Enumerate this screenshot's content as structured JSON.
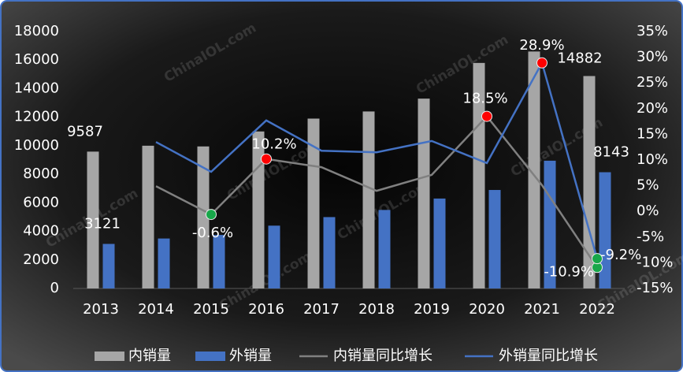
{
  "chart_data": {
    "type": "bar-line",
    "watermark": "ChinaIOL.com",
    "categories": [
      "2013",
      "2014",
      "2015",
      "2016",
      "2017",
      "2018",
      "2019",
      "2020",
      "2021",
      "2022"
    ],
    "series": [
      {
        "name": "内销量",
        "type": "bar",
        "color": "#a6a6a6",
        "values": [
          9587,
          10000,
          9950,
          11000,
          11900,
          12400,
          13300,
          15800,
          16600,
          14882
        ],
        "value_labels": [
          "9587",
          null,
          null,
          null,
          null,
          null,
          null,
          null,
          null,
          "14882"
        ]
      },
      {
        "name": "外销量",
        "type": "bar",
        "color": "#4472c4",
        "values": [
          3121,
          3500,
          3750,
          4400,
          5000,
          5500,
          6300,
          6900,
          8950,
          8143
        ],
        "value_labels": [
          "3121",
          null,
          null,
          null,
          null,
          null,
          null,
          null,
          null,
          "8143"
        ]
      },
      {
        "name": "内销量同比增长",
        "type": "line",
        "axis": "y2",
        "color": "#808080",
        "values": [
          null,
          4.9,
          -0.6,
          10.2,
          8.6,
          4.0,
          7.1,
          18.5,
          5.1,
          -10.9
        ],
        "value_labels": [
          null,
          null,
          "-0.6%",
          "10.2%",
          null,
          null,
          null,
          "18.5%",
          null,
          "-10.9%"
        ],
        "marker_colors": [
          null,
          null,
          "#18a74a",
          "#ff0000",
          null,
          null,
          null,
          "#ff0000",
          null,
          "#18a74a"
        ]
      },
      {
        "name": "外销量同比增长",
        "type": "line",
        "axis": "y2",
        "color": "#4472c4",
        "values": [
          null,
          13.5,
          7.7,
          17.7,
          11.8,
          11.5,
          13.7,
          9.4,
          28.9,
          -9.2
        ],
        "value_labels": [
          null,
          null,
          null,
          null,
          null,
          null,
          null,
          null,
          "28.9%",
          "-9.2%"
        ],
        "marker_colors": [
          null,
          null,
          null,
          null,
          null,
          null,
          null,
          null,
          "#ff0000",
          "#18a74a"
        ]
      }
    ],
    "ylim": [
      0,
      18000
    ],
    "yticks": [
      0,
      2000,
      4000,
      6000,
      8000,
      10000,
      12000,
      14000,
      16000,
      18000
    ],
    "y2lim": [
      -15,
      35
    ],
    "y2ticks": [
      {
        "value": -15,
        "label": "-15%"
      },
      {
        "value": -10,
        "label": "-10%"
      },
      {
        "value": -5,
        "label": "-5%"
      },
      {
        "value": 0,
        "label": "0%"
      },
      {
        "value": 5,
        "label": "5%"
      },
      {
        "value": 10,
        "label": "10%"
      },
      {
        "value": 15,
        "label": "15%"
      },
      {
        "value": 20,
        "label": "20%"
      },
      {
        "value": 25,
        "label": "25%"
      },
      {
        "value": 30,
        "label": "30%"
      },
      {
        "value": 35,
        "label": "35%"
      }
    ],
    "legend": "bottom"
  }
}
